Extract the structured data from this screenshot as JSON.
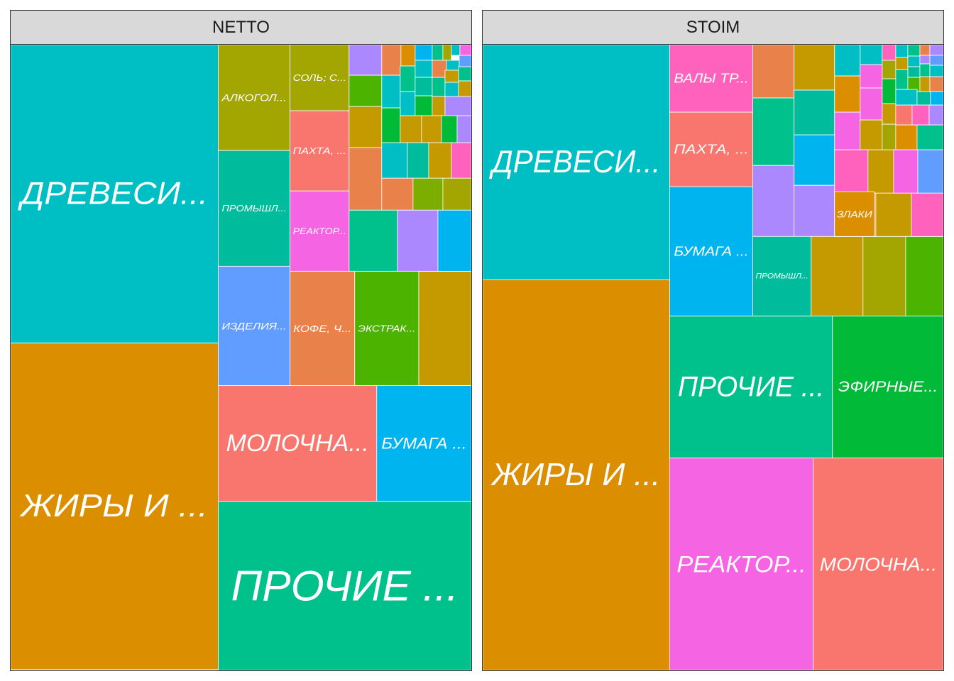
{
  "chart_data": [
    {
      "type": "treemap",
      "facet": "NETTO",
      "tiles": [
        {
          "label": "ДРЕВЕСИ...",
          "value": 100,
          "color": "#00BFC4"
        },
        {
          "label": "ЖИРЫ И ...",
          "value": 110,
          "color": "#DB8E00"
        },
        {
          "label": "ПРОЧИЕ ...",
          "value": 60,
          "color": "#00C08B"
        },
        {
          "label": "МОЛОЧНА...",
          "value": 27,
          "color": "#F8766D"
        },
        {
          "label": "БУМАГА ...",
          "value": 16,
          "color": "#00B4EF"
        },
        {
          "label": "АЛКОГОЛ...",
          "value": 10,
          "color": "#A3A500"
        },
        {
          "label": "ПРОМЫШЛ...",
          "value": 10.5,
          "color": "#00BC9D"
        },
        {
          "label": "ИЗДЕЛИЯ...",
          "value": 10.5,
          "color": "#619CFF"
        },
        {
          "label": "СОЛЬ; С...",
          "value": 5,
          "color": "#A3A500"
        },
        {
          "label": "ПАХТА, ...",
          "value": 6.5,
          "color": "#F8766D"
        },
        {
          "label": "РЕАКТОР...",
          "value": 6.5,
          "color": "#F564E3"
        },
        {
          "label": "КОФЕ, Ч...",
          "value": 10,
          "color": "#E8824A"
        },
        {
          "label": "ЭКСТРАК...",
          "value": 10,
          "color": "#4CB400"
        }
      ]
    },
    {
      "type": "treemap",
      "facet": "STOIM",
      "tiles": [
        {
          "label": "ДРЕВЕСИ...",
          "value": 89,
          "color": "#00BFC4"
        },
        {
          "label": "ЖИРЫ И ...",
          "value": 148,
          "color": "#DB8E00"
        },
        {
          "label": "РЕАКТОР...",
          "value": 54,
          "color": "#F564E3"
        },
        {
          "label": "МОЛОЧНА...",
          "value": 55,
          "color": "#F8766D"
        },
        {
          "label": "ПРОЧИЕ ...",
          "value": 30,
          "color": "#00C08B"
        },
        {
          "label": "ЭФИРНЫЕ...",
          "value": 26,
          "color": "#00BA38"
        },
        {
          "label": "ВАЛЫ ТР...",
          "value": 9.5,
          "color": "#FF62BC"
        },
        {
          "label": "ПАХТА, ...",
          "value": 9.5,
          "color": "#F8766D"
        },
        {
          "label": "БУМАГА ...",
          "value": 14,
          "color": "#00B4EF"
        },
        {
          "label": "ПРОМЫШЛ...",
          "value": 7,
          "color": "#00BC9D"
        },
        {
          "label": "ЗЛАКИ",
          "value": 4,
          "color": "#DB8E00"
        }
      ]
    }
  ]
}
